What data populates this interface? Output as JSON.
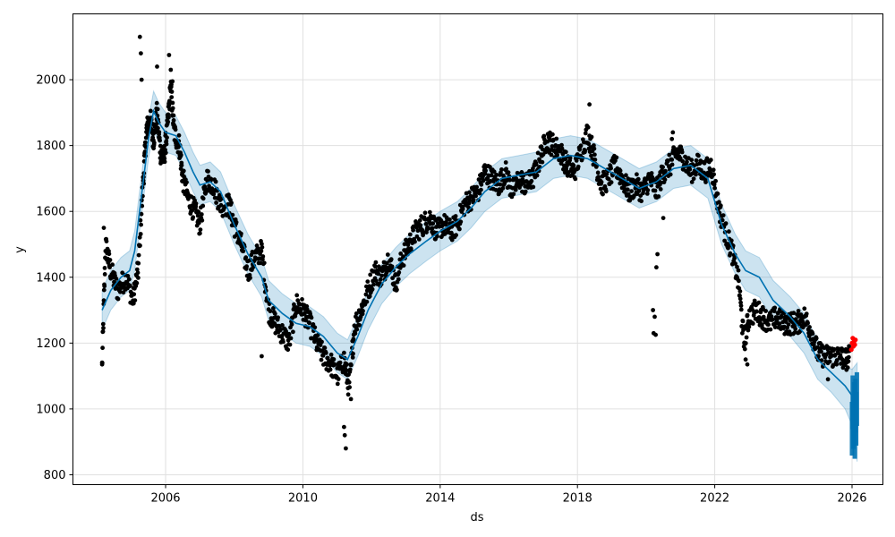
{
  "chart_data": {
    "type": "scatter",
    "title": "",
    "xlabel": "ds",
    "ylabel": "y",
    "xlim": [
      2003.3,
      2026.9
    ],
    "ylim": [
      770,
      2200
    ],
    "grid": true,
    "x_ticks": [
      {
        "value": 2006,
        "label": "2006"
      },
      {
        "value": 2010,
        "label": "2010"
      },
      {
        "value": 2014,
        "label": "2014"
      },
      {
        "value": 2018,
        "label": "2018"
      },
      {
        "value": 2022,
        "label": "2022"
      },
      {
        "value": 2026,
        "label": "2026"
      }
    ],
    "y_ticks": [
      {
        "value": 800,
        "label": "800"
      },
      {
        "value": 1000,
        "label": "1000"
      },
      {
        "value": 1200,
        "label": "1200"
      },
      {
        "value": 1400,
        "label": "1400"
      },
      {
        "value": 1600,
        "label": "1600"
      },
      {
        "value": 1800,
        "label": "1800"
      },
      {
        "value": 2000,
        "label": "2000"
      }
    ],
    "colors": {
      "observed": "#000000",
      "recent": "#ff0000",
      "forecast_line": "#0072B2",
      "interval_fill": "#0072B2",
      "forecast_points": "#0072B2"
    },
    "observed_path": [
      [
        2004.15,
        1130
      ],
      [
        2004.25,
        1500
      ],
      [
        2004.4,
        1420
      ],
      [
        2004.6,
        1360
      ],
      [
        2004.85,
        1400
      ],
      [
        2005.05,
        1330
      ],
      [
        2005.2,
        1420
      ],
      [
        2005.35,
        1700
      ],
      [
        2005.45,
        1850
      ],
      [
        2005.55,
        1880
      ],
      [
        2005.65,
        1820
      ],
      [
        2005.75,
        1900
      ],
      [
        2005.85,
        1780
      ],
      [
        2005.95,
        1760
      ],
      [
        2006.05,
        1850
      ],
      [
        2006.15,
        1980
      ],
      [
        2006.25,
        1840
      ],
      [
        2006.4,
        1800
      ],
      [
        2006.5,
        1700
      ],
      [
        2006.65,
        1640
      ],
      [
        2006.85,
        1600
      ],
      [
        2007.0,
        1560
      ],
      [
        2007.2,
        1700
      ],
      [
        2007.4,
        1680
      ],
      [
        2007.6,
        1620
      ],
      [
        2007.85,
        1620
      ],
      [
        2008.0,
        1560
      ],
      [
        2008.2,
        1500
      ],
      [
        2008.4,
        1420
      ],
      [
        2008.6,
        1460
      ],
      [
        2008.8,
        1480
      ],
      [
        2009.0,
        1300
      ],
      [
        2009.2,
        1260
      ],
      [
        2009.4,
        1230
      ],
      [
        2009.6,
        1200
      ],
      [
        2009.8,
        1320
      ],
      [
        2010.0,
        1300
      ],
      [
        2010.2,
        1260
      ],
      [
        2010.4,
        1200
      ],
      [
        2010.6,
        1160
      ],
      [
        2010.8,
        1140
      ],
      [
        2011.0,
        1100
      ],
      [
        2011.2,
        1150
      ],
      [
        2011.35,
        1060
      ],
      [
        2011.5,
        1250
      ],
      [
        2011.7,
        1300
      ],
      [
        2011.9,
        1360
      ],
      [
        2012.1,
        1420
      ],
      [
        2012.3,
        1400
      ],
      [
        2012.5,
        1460
      ],
      [
        2012.7,
        1380
      ],
      [
        2012.9,
        1460
      ],
      [
        2013.1,
        1500
      ],
      [
        2013.3,
        1540
      ],
      [
        2013.5,
        1560
      ],
      [
        2013.7,
        1580
      ],
      [
        2013.9,
        1540
      ],
      [
        2014.1,
        1560
      ],
      [
        2014.3,
        1540
      ],
      [
        2014.5,
        1560
      ],
      [
        2014.7,
        1620
      ],
      [
        2014.9,
        1640
      ],
      [
        2015.1,
        1660
      ],
      [
        2015.3,
        1720
      ],
      [
        2015.5,
        1700
      ],
      [
        2015.7,
        1680
      ],
      [
        2015.9,
        1720
      ],
      [
        2016.1,
        1660
      ],
      [
        2016.3,
        1700
      ],
      [
        2016.5,
        1680
      ],
      [
        2016.7,
        1700
      ],
      [
        2016.9,
        1760
      ],
      [
        2017.1,
        1820
      ],
      [
        2017.3,
        1800
      ],
      [
        2017.5,
        1780
      ],
      [
        2017.7,
        1740
      ],
      [
        2017.9,
        1720
      ],
      [
        2018.1,
        1780
      ],
      [
        2018.3,
        1840
      ],
      [
        2018.5,
        1760
      ],
      [
        2018.7,
        1680
      ],
      [
        2018.9,
        1700
      ],
      [
        2019.1,
        1740
      ],
      [
        2019.3,
        1700
      ],
      [
        2019.5,
        1660
      ],
      [
        2019.7,
        1680
      ],
      [
        2019.9,
        1660
      ],
      [
        2020.1,
        1700
      ],
      [
        2020.3,
        1660
      ],
      [
        2020.5,
        1720
      ],
      [
        2020.7,
        1740
      ],
      [
        2020.9,
        1780
      ],
      [
        2021.1,
        1760
      ],
      [
        2021.3,
        1720
      ],
      [
        2021.5,
        1740
      ],
      [
        2021.7,
        1720
      ],
      [
        2021.9,
        1740
      ],
      [
        2022.1,
        1620
      ],
      [
        2022.3,
        1540
      ],
      [
        2022.5,
        1480
      ],
      [
        2022.7,
        1380
      ],
      [
        2022.85,
        1200
      ],
      [
        2023.0,
        1280
      ],
      [
        2023.2,
        1300
      ],
      [
        2023.4,
        1280
      ],
      [
        2023.6,
        1260
      ],
      [
        2023.8,
        1280
      ],
      [
        2024.0,
        1260
      ],
      [
        2024.2,
        1260
      ],
      [
        2024.4,
        1260
      ],
      [
        2024.6,
        1280
      ],
      [
        2024.8,
        1240
      ],
      [
        2025.0,
        1170
      ],
      [
        2025.2,
        1160
      ],
      [
        2025.4,
        1160
      ],
      [
        2025.6,
        1160
      ],
      [
        2025.8,
        1150
      ],
      [
        2025.95,
        1160
      ]
    ],
    "outliers": [
      [
        2004.15,
        1135
      ],
      [
        2004.2,
        1550
      ],
      [
        2005.25,
        2130
      ],
      [
        2005.28,
        2080
      ],
      [
        2005.3,
        2000
      ],
      [
        2005.75,
        2040
      ],
      [
        2006.1,
        2075
      ],
      [
        2006.15,
        2030
      ],
      [
        2006.2,
        1995
      ],
      [
        2008.8,
        1160
      ],
      [
        2011.2,
        945
      ],
      [
        2011.22,
        920
      ],
      [
        2011.25,
        880
      ],
      [
        2011.4,
        1030
      ],
      [
        2018.35,
        1925
      ],
      [
        2020.2,
        1300
      ],
      [
        2020.25,
        1280
      ],
      [
        2020.22,
        1230
      ],
      [
        2020.28,
        1225
      ],
      [
        2020.3,
        1430
      ],
      [
        2020.33,
        1470
      ],
      [
        2020.5,
        1580
      ],
      [
        2020.75,
        1820
      ],
      [
        2020.78,
        1840
      ],
      [
        2022.65,
        1400
      ],
      [
        2022.9,
        1150
      ],
      [
        2022.95,
        1135
      ],
      [
        2025.3,
        1090
      ]
    ],
    "recent_points": [
      [
        2025.98,
        1180
      ],
      [
        2026.0,
        1200
      ],
      [
        2026.02,
        1215
      ],
      [
        2026.04,
        1190
      ],
      [
        2026.06,
        1205
      ],
      [
        2026.08,
        1195
      ],
      [
        2026.1,
        1210
      ]
    ],
    "trend_line": [
      [
        2004.15,
        1300
      ],
      [
        2004.4,
        1360
      ],
      [
        2004.7,
        1400
      ],
      [
        2004.95,
        1420
      ],
      [
        2005.1,
        1480
      ],
      [
        2005.3,
        1650
      ],
      [
        2005.5,
        1820
      ],
      [
        2005.65,
        1905
      ],
      [
        2005.8,
        1870
      ],
      [
        2006.0,
        1840
      ],
      [
        2006.3,
        1830
      ],
      [
        2006.55,
        1780
      ],
      [
        2006.8,
        1720
      ],
      [
        2007.0,
        1680
      ],
      [
        2007.3,
        1690
      ],
      [
        2007.6,
        1660
      ],
      [
        2008.0,
        1560
      ],
      [
        2008.4,
        1470
      ],
      [
        2008.8,
        1400
      ],
      [
        2009.0,
        1330
      ],
      [
        2009.4,
        1290
      ],
      [
        2009.8,
        1260
      ],
      [
        2010.2,
        1250
      ],
      [
        2010.6,
        1220
      ],
      [
        2011.0,
        1170
      ],
      [
        2011.3,
        1150
      ],
      [
        2011.6,
        1220
      ],
      [
        2011.9,
        1300
      ],
      [
        2012.3,
        1380
      ],
      [
        2012.7,
        1430
      ],
      [
        2013.1,
        1470
      ],
      [
        2013.6,
        1510
      ],
      [
        2014.0,
        1540
      ],
      [
        2014.5,
        1570
      ],
      [
        2014.9,
        1610
      ],
      [
        2015.3,
        1660
      ],
      [
        2015.8,
        1700
      ],
      [
        2016.3,
        1710
      ],
      [
        2016.8,
        1720
      ],
      [
        2017.3,
        1760
      ],
      [
        2017.8,
        1770
      ],
      [
        2018.3,
        1760
      ],
      [
        2018.8,
        1730
      ],
      [
        2019.3,
        1700
      ],
      [
        2019.8,
        1670
      ],
      [
        2020.3,
        1690
      ],
      [
        2020.8,
        1730
      ],
      [
        2021.3,
        1740
      ],
      [
        2021.8,
        1700
      ],
      [
        2022.2,
        1560
      ],
      [
        2022.6,
        1470
      ],
      [
        2022.9,
        1420
      ],
      [
        2023.3,
        1400
      ],
      [
        2023.7,
        1330
      ],
      [
        2024.2,
        1280
      ],
      [
        2024.6,
        1230
      ],
      [
        2025.0,
        1150
      ],
      [
        2025.4,
        1110
      ],
      [
        2025.8,
        1070
      ],
      [
        2026.0,
        1040
      ],
      [
        2026.15,
        1025
      ]
    ],
    "interval_band": [
      [
        2004.15,
        1240,
        1360
      ],
      [
        2004.4,
        1300,
        1420
      ],
      [
        2004.7,
        1340,
        1460
      ],
      [
        2004.95,
        1360,
        1480
      ],
      [
        2005.1,
        1420,
        1540
      ],
      [
        2005.3,
        1590,
        1710
      ],
      [
        2005.5,
        1760,
        1880
      ],
      [
        2005.65,
        1845,
        1965
      ],
      [
        2005.8,
        1810,
        1930
      ],
      [
        2006.0,
        1780,
        1900
      ],
      [
        2006.3,
        1770,
        1890
      ],
      [
        2006.55,
        1720,
        1840
      ],
      [
        2006.8,
        1660,
        1780
      ],
      [
        2007.0,
        1620,
        1740
      ],
      [
        2007.3,
        1630,
        1750
      ],
      [
        2007.6,
        1600,
        1720
      ],
      [
        2008.0,
        1500,
        1620
      ],
      [
        2008.4,
        1410,
        1530
      ],
      [
        2008.8,
        1340,
        1460
      ],
      [
        2009.0,
        1270,
        1390
      ],
      [
        2009.4,
        1230,
        1350
      ],
      [
        2009.8,
        1200,
        1320
      ],
      [
        2010.2,
        1190,
        1310
      ],
      [
        2010.6,
        1160,
        1280
      ],
      [
        2011.0,
        1110,
        1230
      ],
      [
        2011.3,
        1090,
        1210
      ],
      [
        2011.6,
        1160,
        1280
      ],
      [
        2011.9,
        1240,
        1360
      ],
      [
        2012.3,
        1320,
        1440
      ],
      [
        2012.7,
        1370,
        1490
      ],
      [
        2013.1,
        1410,
        1530
      ],
      [
        2013.6,
        1450,
        1570
      ],
      [
        2014.0,
        1480,
        1600
      ],
      [
        2014.5,
        1510,
        1630
      ],
      [
        2014.9,
        1550,
        1670
      ],
      [
        2015.3,
        1600,
        1720
      ],
      [
        2015.8,
        1640,
        1760
      ],
      [
        2016.3,
        1650,
        1770
      ],
      [
        2016.8,
        1660,
        1780
      ],
      [
        2017.3,
        1700,
        1820
      ],
      [
        2017.8,
        1710,
        1830
      ],
      [
        2018.3,
        1700,
        1820
      ],
      [
        2018.8,
        1670,
        1790
      ],
      [
        2019.3,
        1640,
        1760
      ],
      [
        2019.8,
        1610,
        1730
      ],
      [
        2020.3,
        1630,
        1750
      ],
      [
        2020.8,
        1670,
        1790
      ],
      [
        2021.3,
        1680,
        1800
      ],
      [
        2021.8,
        1640,
        1760
      ],
      [
        2022.2,
        1500,
        1620
      ],
      [
        2022.6,
        1410,
        1530
      ],
      [
        2022.9,
        1360,
        1480
      ],
      [
        2023.3,
        1340,
        1460
      ],
      [
        2023.7,
        1270,
        1390
      ],
      [
        2024.2,
        1220,
        1340
      ],
      [
        2024.6,
        1170,
        1290
      ],
      [
        2025.0,
        1090,
        1210
      ],
      [
        2025.4,
        1050,
        1170
      ],
      [
        2025.8,
        1000,
        1130
      ],
      [
        2026.0,
        950,
        1120
      ],
      [
        2026.15,
        840,
        1140
      ]
    ],
    "forecast_points": [
      [
        2026.0,
        940
      ],
      [
        2026.02,
        1020
      ],
      [
        2026.04,
        960
      ],
      [
        2026.06,
        1000
      ],
      [
        2026.08,
        930
      ],
      [
        2026.1,
        1010
      ],
      [
        2026.12,
        970
      ],
      [
        2026.14,
        1030
      ]
    ]
  }
}
